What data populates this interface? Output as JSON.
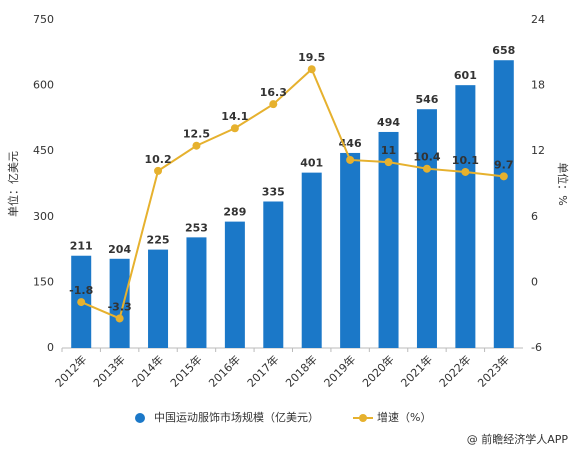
{
  "chart_data": {
    "type": "bar-line",
    "y_label": "单位：亿美元",
    "y2_label": "单位：%",
    "categories": [
      "2012年",
      "2013年",
      "2014年",
      "2015年",
      "2016年",
      "2017年",
      "2018年",
      "2019年",
      "2020年",
      "2021年",
      "2022年",
      "2023年"
    ],
    "series": [
      {
        "name": "中国运动服饰市场规模（亿美元）",
        "type": "bar",
        "color": "#1b78c8",
        "values": [
          211,
          204,
          225,
          253,
          289,
          335,
          401,
          446,
          494,
          546,
          601,
          658
        ]
      },
      {
        "name": "增速（%）",
        "type": "line",
        "axis": "y2",
        "color": "#e6b12e",
        "values": [
          -1.8,
          -3.3,
          10.2,
          12.5,
          14.1,
          16.3,
          19.5,
          11.2,
          11,
          10.4,
          10.1,
          9.7
        ],
        "value_labels": [
          "-1.8",
          "-3.3",
          "10.2",
          "12.5",
          "14.1",
          "16.3",
          "19.5",
          null,
          "11",
          "10.4",
          "10.1",
          "9.7"
        ]
      }
    ],
    "ylim": [
      0,
      750
    ],
    "yticks": [
      0,
      150,
      300,
      450,
      600,
      750
    ],
    "y2lim": [
      -6,
      24
    ],
    "y2ticks": [
      -6,
      0,
      6,
      12,
      18,
      24
    ],
    "legend": "bottom",
    "source": "@ 前瞻经济学人APP"
  }
}
